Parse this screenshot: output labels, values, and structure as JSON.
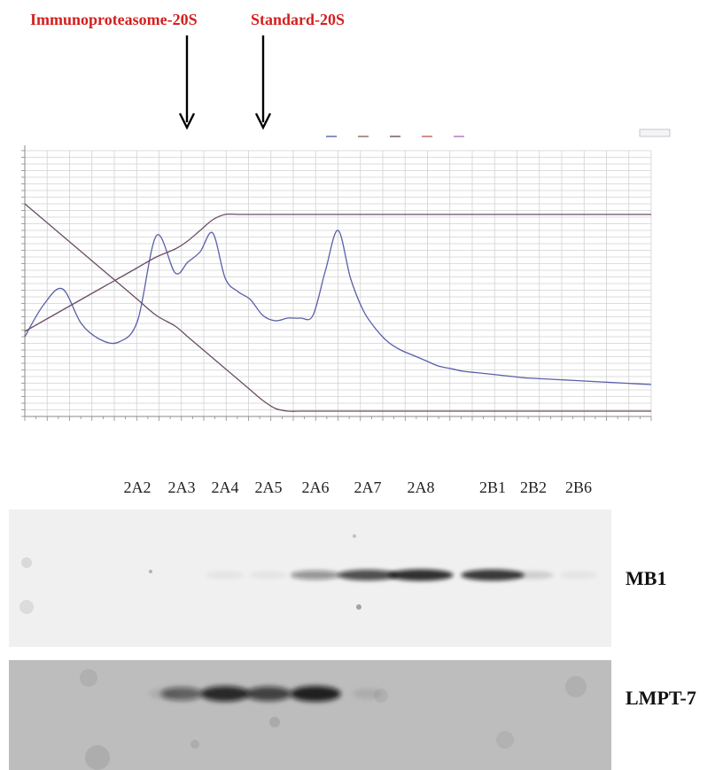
{
  "annotations": {
    "immuno_label": "Immunoproteasome-20S",
    "standard_label": "Standard-20S"
  },
  "chart_data": {
    "type": "line",
    "title": "",
    "xlabel": "",
    "ylabel": "",
    "legend_placement": "top-center",
    "grid": true,
    "xlim": [
      0,
      100
    ],
    "ylim": [
      0,
      100
    ],
    "x": [
      0,
      3,
      6,
      9,
      12,
      15,
      18,
      21,
      24,
      26,
      28,
      30,
      32,
      34,
      36,
      38,
      40,
      42,
      44,
      46,
      48,
      50,
      52,
      54,
      56,
      58,
      60,
      62,
      64,
      66,
      68,
      70,
      72,
      74,
      76,
      78,
      80,
      84,
      88,
      92,
      96,
      100
    ],
    "series": [
      {
        "role": "absorbance",
        "color": "#5a5fa8",
        "values": [
          30,
          42,
          48,
          35,
          29,
          28,
          36,
          68,
          54,
          58,
          62,
          69,
          52,
          47,
          44,
          38,
          36,
          37,
          37,
          38,
          55,
          70,
          52,
          40,
          33,
          28,
          25,
          23,
          21,
          19,
          18,
          17,
          16.5,
          16,
          15.5,
          15,
          14.5,
          14,
          13.5,
          13,
          12.5,
          12
        ]
      },
      {
        "role": "gradient-rising",
        "color": "#6b4e66",
        "values": [
          32,
          36,
          40,
          44,
          48,
          52,
          56,
          60,
          63,
          66,
          70,
          74,
          76,
          76,
          76,
          76,
          76,
          76,
          76,
          76,
          76,
          76,
          76,
          76,
          76,
          76,
          76,
          76,
          76,
          76,
          76,
          76,
          76,
          76,
          76,
          76,
          76,
          76,
          76,
          76,
          76,
          76
        ]
      },
      {
        "role": "gradient-falling",
        "color": "#6b4e66",
        "values": [
          80,
          74,
          68,
          62,
          56,
          50,
          44,
          38,
          34,
          30,
          26,
          22,
          18,
          14,
          10,
          6,
          3,
          2,
          2,
          2,
          2,
          2,
          2,
          2,
          2,
          2,
          2,
          2,
          2,
          2,
          2,
          2,
          2,
          2,
          2,
          2,
          2,
          2,
          2,
          2,
          2,
          2
        ]
      }
    ]
  },
  "lanes": [
    "2A2",
    "2A3",
    "2A4",
    "2A5",
    "2A6",
    "2A7",
    "2A8",
    "2B1",
    "2B2",
    "2B6"
  ],
  "blots": {
    "mb1": {
      "label": "MB1",
      "band_intensity": [
        0.0,
        0.0,
        0.05,
        0.05,
        0.45,
        0.8,
        0.95,
        0.9,
        0.15,
        0.05
      ]
    },
    "lmpt7": {
      "label": "LMPT-7",
      "band_intensity": [
        0.1,
        0.6,
        0.95,
        0.8,
        1.0,
        0.1,
        0.0,
        0.0,
        0.0,
        0.0
      ]
    }
  }
}
